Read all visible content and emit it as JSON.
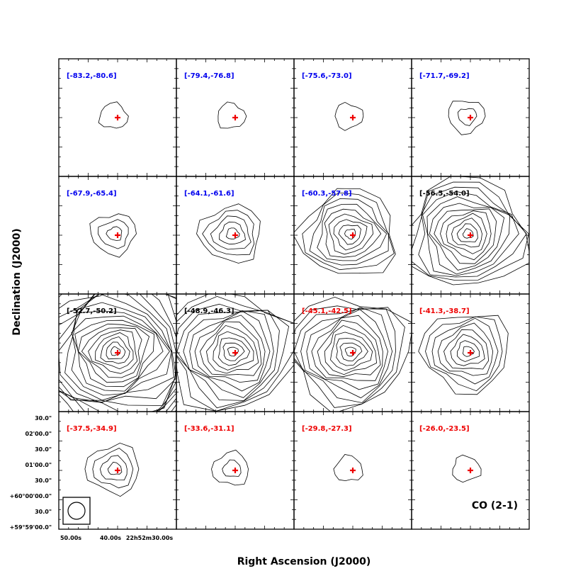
{
  "chart_data": {
    "type": "channel-map contour grid",
    "xlabel": "Right Ascension (J2000)",
    "ylabel": "Declination (J2000)",
    "molecule_label": "CO (2-1)",
    "x_tick_labels": [
      "50.00s",
      "40.00s",
      "22h52m30.00s"
    ],
    "y_tick_labels": [
      "30.0\"",
      "02'00.0\"",
      "30.0\"",
      "01'00.0\"",
      "30.0\"",
      "+60°00'00.0\"",
      "30.0\"",
      "+59°59'00.0\""
    ],
    "colors": {
      "blue": "#0000ee",
      "black": "#000000",
      "red": "#ee0000",
      "marker": "#ee0000"
    },
    "panels": [
      {
        "range": "[-83.2,-80.6]",
        "color": "blue",
        "levels": 1
      },
      {
        "range": "[-79.4,-76.8]",
        "color": "blue",
        "levels": 1
      },
      {
        "range": "[-75.6,-73.0]",
        "color": "blue",
        "levels": 1
      },
      {
        "range": "[-71.7,-69.2]",
        "color": "blue",
        "levels": 2
      },
      {
        "range": "[-67.9,-65.4]",
        "color": "blue",
        "levels": 3
      },
      {
        "range": "[-64.1,-61.6]",
        "color": "blue",
        "levels": 5
      },
      {
        "range": "[-60.3,-57.8]",
        "color": "blue",
        "levels": 9
      },
      {
        "range": "[-56.5,-54.0]",
        "color": "black",
        "levels": 12
      },
      {
        "range": "[-52.7,-50.2]",
        "color": "black",
        "levels": 22
      },
      {
        "range": "[-48.9,-46.3]",
        "color": "black",
        "levels": 13
      },
      {
        "range": "[-45.1,-42.5]",
        "color": "red",
        "levels": 12
      },
      {
        "range": "[-41.3,-38.7]",
        "color": "red",
        "levels": 8
      },
      {
        "range": "[-37.5,-34.9]",
        "color": "red",
        "levels": 4
      },
      {
        "range": "[-33.6,-31.1]",
        "color": "red",
        "levels": 2
      },
      {
        "range": "[-29.8,-27.3]",
        "color": "red",
        "levels": 1
      },
      {
        "range": "[-26.0,-23.5]",
        "color": "red",
        "levels": 1
      }
    ]
  }
}
